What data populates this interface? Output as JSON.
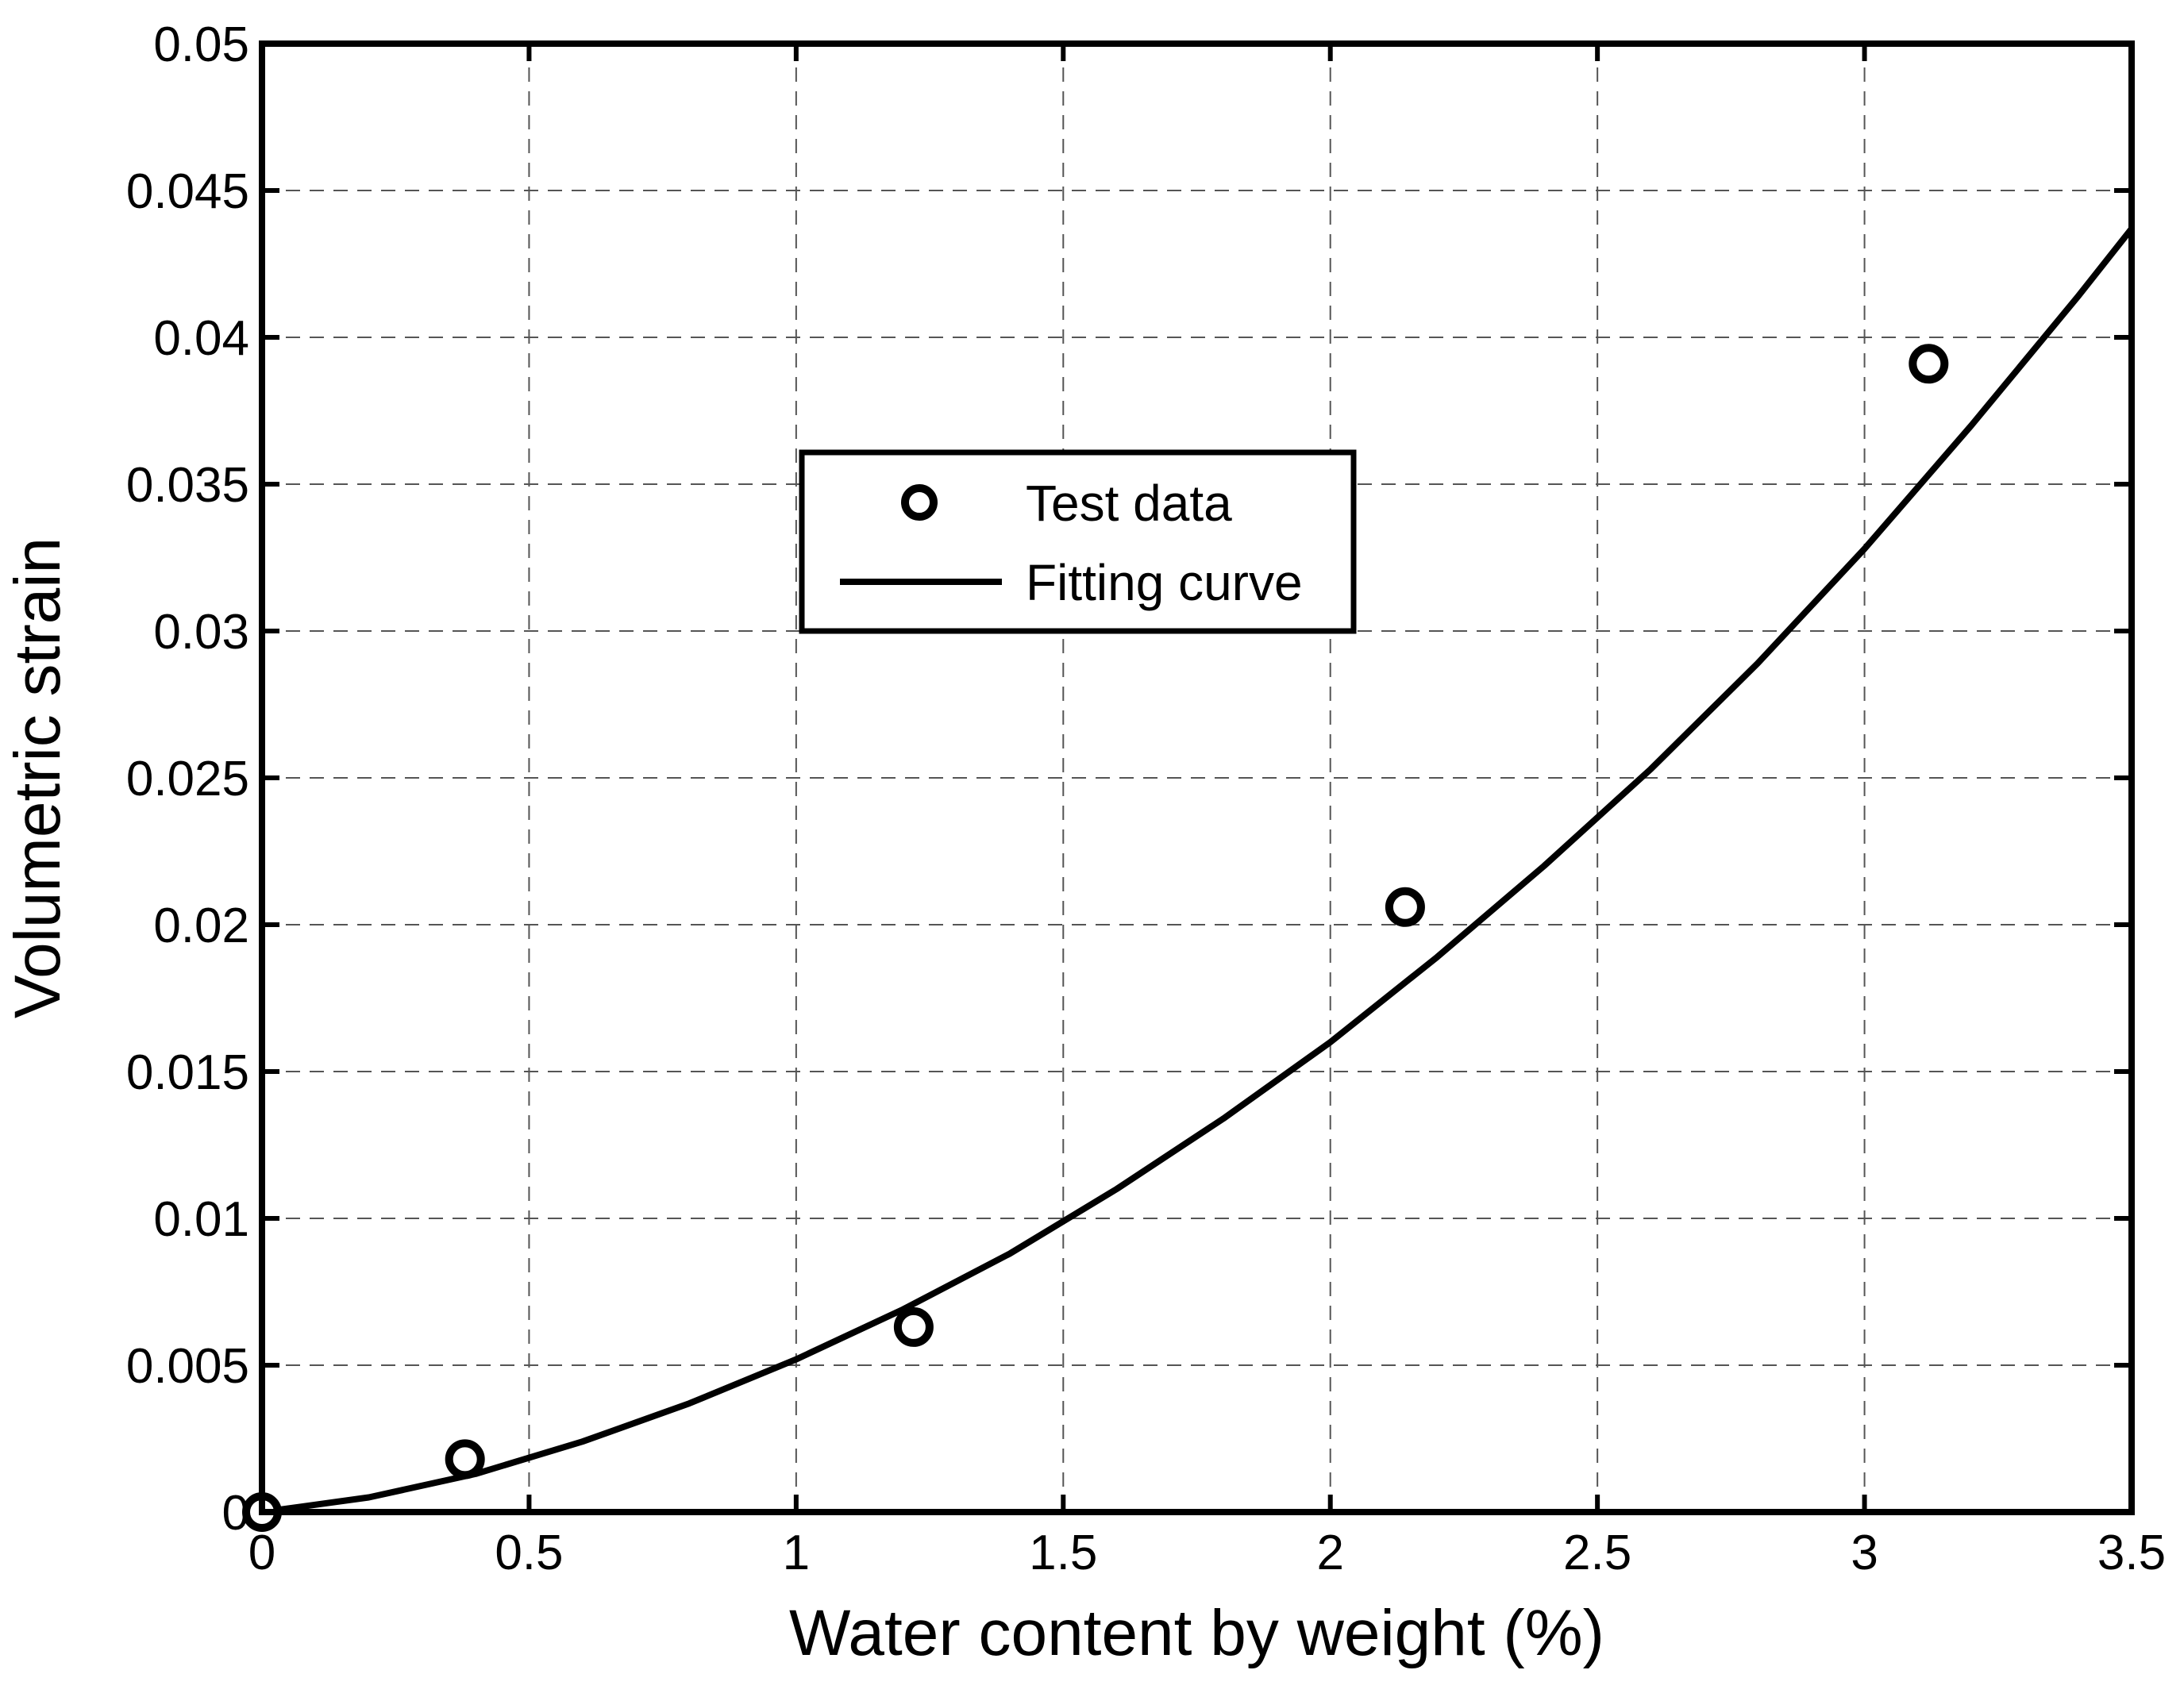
{
  "chart_data": {
    "type": "scatter",
    "title": "",
    "xlabel": "Water content by weight (%)",
    "ylabel": "Volumetric strain",
    "xlim": [
      0,
      3.5
    ],
    "ylim": [
      0,
      0.05
    ],
    "grid": true,
    "x_ticks": [
      {
        "value": 0,
        "label": "0"
      },
      {
        "value": 0.5,
        "label": "0.5"
      },
      {
        "value": 1,
        "label": "1"
      },
      {
        "value": 1.5,
        "label": "1.5"
      },
      {
        "value": 2,
        "label": "2"
      },
      {
        "value": 2.5,
        "label": "2.5"
      },
      {
        "value": 3,
        "label": "3"
      },
      {
        "value": 3.5,
        "label": "3.5"
      }
    ],
    "y_ticks": [
      {
        "value": 0,
        "label": "0"
      },
      {
        "value": 0.005,
        "label": "0.005"
      },
      {
        "value": 0.01,
        "label": "0.01"
      },
      {
        "value": 0.015,
        "label": "0.015"
      },
      {
        "value": 0.02,
        "label": "0.02"
      },
      {
        "value": 0.025,
        "label": "0.025"
      },
      {
        "value": 0.03,
        "label": "0.03"
      },
      {
        "value": 0.035,
        "label": "0.035"
      },
      {
        "value": 0.04,
        "label": "0.04"
      },
      {
        "value": 0.045,
        "label": "0.045"
      },
      {
        "value": 0.05,
        "label": "0.05"
      }
    ],
    "legend_position": "upper-center",
    "series": [
      {
        "name": "Test data",
        "kind": "marker",
        "marker": "circle",
        "x": [
          0,
          0.38,
          1.22,
          2.14,
          3.12
        ],
        "y": [
          0,
          0.0018,
          0.0063,
          0.0206,
          0.0391
        ]
      },
      {
        "name": "Fitting curve",
        "kind": "line",
        "x": [
          0,
          0.2,
          0.4,
          0.6,
          0.8,
          1.0,
          1.2,
          1.4,
          1.6,
          1.8,
          2.0,
          2.2,
          2.4,
          2.6,
          2.8,
          3.0,
          3.2,
          3.4,
          3.5
        ],
        "y": [
          0,
          0.0005,
          0.0013,
          0.0024,
          0.0037,
          0.0052,
          0.0069,
          0.0088,
          0.011,
          0.0134,
          0.016,
          0.0189,
          0.022,
          0.0253,
          0.0289,
          0.0328,
          0.037,
          0.0414,
          0.0437
        ]
      }
    ]
  }
}
